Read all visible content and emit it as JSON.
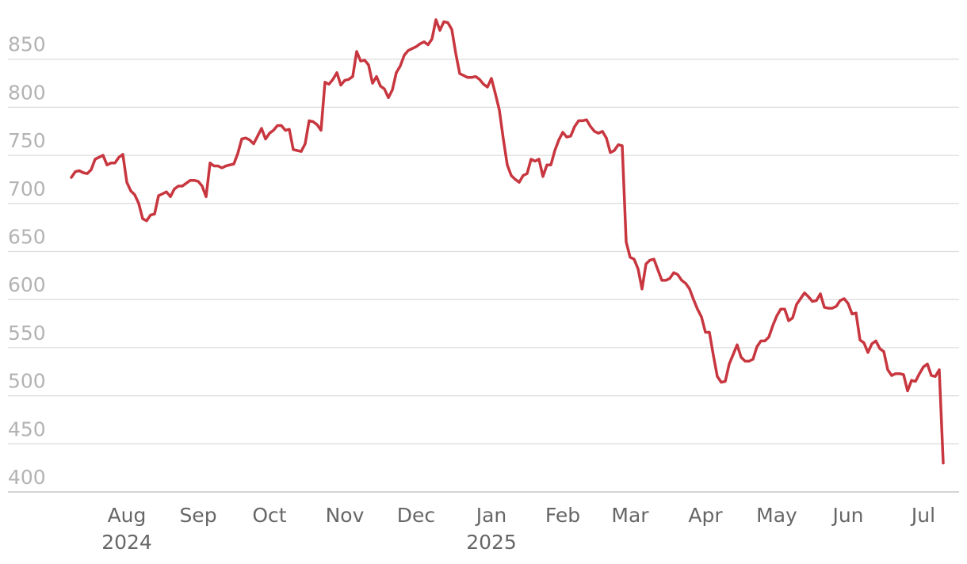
{
  "chart_data": {
    "type": "line",
    "color": "#c8363f",
    "grid": true,
    "ylim": [
      400,
      900
    ],
    "yticks": [
      400,
      450,
      500,
      550,
      600,
      650,
      700,
      750,
      800,
      850
    ],
    "categories": [
      null,
      null,
      null,
      null,
      null,
      null,
      null,
      null,
      null,
      null,
      null,
      null,
      null,
      null,
      "Aug\n2024",
      null,
      null,
      null,
      null,
      null,
      null,
      null,
      null,
      null,
      null,
      null,
      null,
      null,
      null,
      null,
      null,
      null,
      "Sep",
      null,
      null,
      null,
      null,
      null,
      null,
      null,
      null,
      null,
      null,
      null,
      null,
      null,
      null,
      null,
      null,
      null,
      "Oct",
      null,
      null,
      null,
      null,
      null,
      null,
      null,
      null,
      null,
      null,
      null,
      null,
      null,
      null,
      null,
      null,
      null,
      null,
      "Nov",
      null,
      null,
      null,
      null,
      null,
      null,
      null,
      null,
      null,
      null,
      null,
      null,
      null,
      null,
      null,
      null,
      null,
      "Dec",
      null,
      null,
      null,
      null,
      null,
      null,
      null,
      null,
      null,
      null,
      null,
      null,
      null,
      null,
      null,
      null,
      null,
      null,
      "Jan\n2025",
      null,
      null,
      null,
      null,
      null,
      null,
      null,
      null,
      null,
      null,
      null,
      null,
      null,
      null,
      null,
      null,
      null,
      "Feb",
      null,
      null,
      null,
      null,
      null,
      null,
      null,
      null,
      null,
      null,
      null,
      null,
      null,
      null,
      null,
      null,
      "Mar",
      null,
      null,
      null,
      null,
      null,
      null,
      null,
      null,
      null,
      null,
      null,
      null,
      null,
      null,
      null,
      null,
      null,
      null,
      "Apr",
      null,
      null,
      null,
      null,
      null,
      null,
      null,
      null,
      null,
      null,
      null,
      null,
      null,
      null,
      null,
      null,
      null,
      "May",
      null,
      null,
      null,
      null,
      null,
      null,
      null,
      null,
      null,
      null,
      null,
      null,
      null,
      null,
      null,
      null,
      null,
      "Jun",
      null,
      null,
      null,
      null,
      null,
      null,
      null,
      null,
      null,
      null,
      null,
      null,
      null,
      null,
      null,
      null,
      null,
      null,
      "Jul",
      null,
      null,
      null,
      null,
      null
    ],
    "values": [
      727,
      733,
      734,
      732,
      731,
      735,
      746,
      748,
      750,
      740,
      742,
      742,
      748,
      751,
      722,
      713,
      709,
      700,
      684,
      682,
      688,
      689,
      708,
      710,
      712,
      707,
      715,
      718,
      718,
      721,
      724,
      724,
      723,
      718,
      707,
      742,
      739,
      739,
      737,
      739,
      740,
      741,
      752,
      767,
      768,
      766,
      762,
      770,
      778,
      767,
      773,
      776,
      781,
      781,
      776,
      777,
      756,
      755,
      754,
      762,
      786,
      785,
      782,
      776,
      826,
      824,
      829,
      836,
      823,
      828,
      829,
      832,
      858,
      848,
      849,
      844,
      825,
      832,
      822,
      819,
      810,
      818,
      836,
      843,
      854,
      859,
      861,
      863,
      866,
      868,
      865,
      871,
      891,
      880,
      889,
      888,
      881,
      856,
      835,
      833,
      831,
      831,
      832,
      829,
      824,
      821,
      830,
      814,
      797,
      767,
      740,
      729,
      725,
      722,
      729,
      731,
      746,
      744,
      746,
      728,
      740,
      740,
      755,
      766,
      774,
      769,
      770,
      780,
      786,
      786,
      787,
      780,
      775,
      773,
      775,
      768,
      753,
      755,
      761,
      760,
      660,
      644,
      642,
      632,
      611,
      637,
      641,
      642,
      631,
      620,
      620,
      622,
      628,
      626,
      620,
      617,
      611,
      600,
      590,
      582,
      566,
      566,
      542,
      520,
      514,
      515,
      533,
      543,
      553,
      540,
      536,
      536,
      538,
      551,
      557,
      557,
      561,
      573,
      583,
      590,
      590,
      578,
      581,
      595,
      601,
      607,
      603,
      598,
      599,
      606,
      592,
      591,
      591,
      593,
      599,
      601,
      596,
      585,
      586,
      558,
      555,
      545,
      554,
      557,
      549,
      546,
      527,
      521,
      523,
      523,
      522,
      505,
      516,
      515,
      523,
      530,
      533,
      521,
      520,
      527,
      430
    ]
  }
}
